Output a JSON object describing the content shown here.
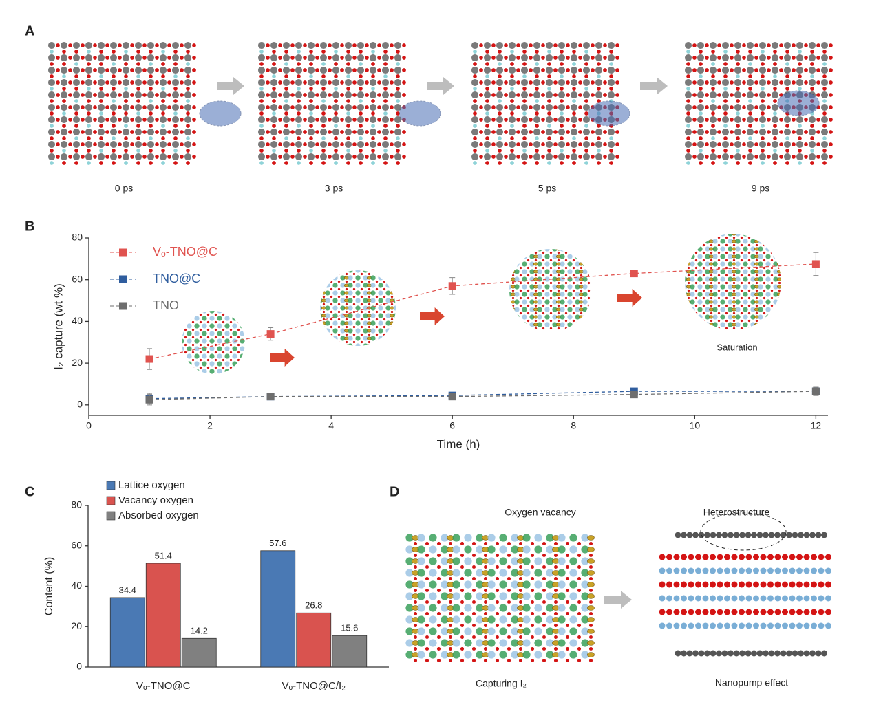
{
  "panel_labels": [
    "A",
    "B",
    "C",
    "D"
  ],
  "panel_a": {
    "times": [
      "0 ps",
      "3 ps",
      "5 ps",
      "9 ps"
    ]
  },
  "chart_data": [
    {
      "type": "line",
      "x": [
        1,
        3,
        6,
        9,
        12
      ],
      "x_label": "Time (h)",
      "y_label": "I₂ capture (wt %)",
      "xlim": [
        0,
        12.2
      ],
      "xticks": [
        0,
        2,
        4,
        6,
        8,
        10,
        12
      ],
      "ylim": [
        -5,
        80
      ],
      "yticks": [
        0,
        20,
        40,
        60,
        80
      ],
      "series": [
        {
          "name": "Vₒ-TNO@C",
          "color": "#e0534f",
          "values": [
            22,
            34,
            57,
            63,
            67.5
          ],
          "errors": [
            5,
            3,
            4,
            1.5,
            5.5
          ]
        },
        {
          "name": "TNO@C",
          "color": "#2f5d9e",
          "values": [
            3,
            4,
            4.5,
            6.5,
            6.5
          ],
          "errors": [
            2.5,
            1,
            1,
            1,
            2
          ]
        },
        {
          "name": "TNO",
          "color": "#6e6e6e",
          "values": [
            2.5,
            4,
            4,
            5,
            6.5
          ],
          "errors": [
            2.5,
            1,
            1,
            1,
            2
          ]
        }
      ],
      "annotation": "Saturation"
    },
    {
      "type": "bar",
      "categories": [
        "Vₒ-TNO@C",
        "Vₒ-TNO@C/I₂"
      ],
      "y_label": "Content (%)",
      "ylim": [
        0,
        80
      ],
      "yticks": [
        0,
        20,
        40,
        60,
        80
      ],
      "series": [
        {
          "name": "Lattice oxygen",
          "color": "#4a79b4",
          "values": [
            34.4,
            57.6
          ]
        },
        {
          "name": "Vacancy oxygen",
          "color": "#d9534f",
          "values": [
            51.4,
            26.8
          ]
        },
        {
          "name": "Absorbed oxygen",
          "color": "#808080",
          "values": [
            14.2,
            15.6
          ]
        }
      ]
    }
  ],
  "panel_d": {
    "labels": [
      "Oxygen vacancy",
      "Heterostructure",
      "Capturing I₂",
      "Nanopump effect"
    ]
  }
}
